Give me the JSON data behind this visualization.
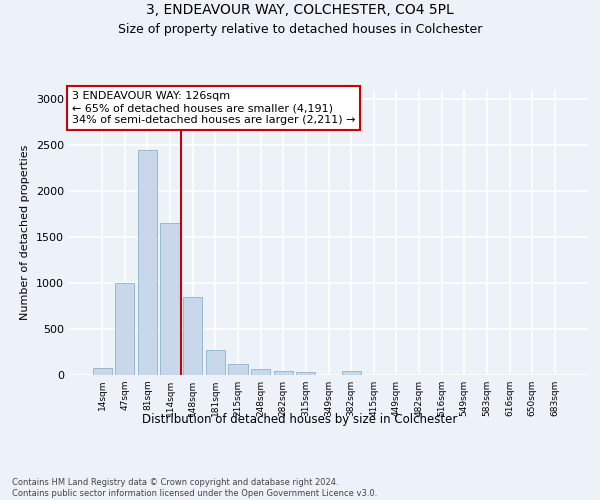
{
  "title1": "3, ENDEAVOUR WAY, COLCHESTER, CO4 5PL",
  "title2": "Size of property relative to detached houses in Colchester",
  "xlabel": "Distribution of detached houses by size in Colchester",
  "ylabel": "Number of detached properties",
  "footnote": "Contains HM Land Registry data © Crown copyright and database right 2024.\nContains public sector information licensed under the Open Government Licence v3.0.",
  "bin_labels": [
    "14sqm",
    "47sqm",
    "81sqm",
    "114sqm",
    "148sqm",
    "181sqm",
    "215sqm",
    "248sqm",
    "282sqm",
    "315sqm",
    "349sqm",
    "382sqm",
    "415sqm",
    "449sqm",
    "482sqm",
    "516sqm",
    "549sqm",
    "583sqm",
    "616sqm",
    "650sqm",
    "683sqm"
  ],
  "bar_values": [
    75,
    1000,
    2450,
    1650,
    850,
    270,
    115,
    65,
    45,
    35,
    0,
    45,
    0,
    0,
    0,
    0,
    0,
    0,
    0,
    0,
    0
  ],
  "bar_color": "#c8d8ea",
  "bar_edge_color": "#8ab4cc",
  "vline_pos": 3.5,
  "vline_color": "#cc0000",
  "annotation_text": "3 ENDEAVOUR WAY: 126sqm\n← 65% of detached houses are smaller (4,191)\n34% of semi-detached houses are larger (2,211) →",
  "annotation_box_facecolor": "#ffffff",
  "annotation_box_edgecolor": "#cc0000",
  "background_color": "#edf2f9",
  "ylim": [
    0,
    3100
  ],
  "yticks": [
    0,
    500,
    1000,
    1500,
    2000,
    2500,
    3000
  ],
  "title1_fontsize": 10,
  "title2_fontsize": 9
}
